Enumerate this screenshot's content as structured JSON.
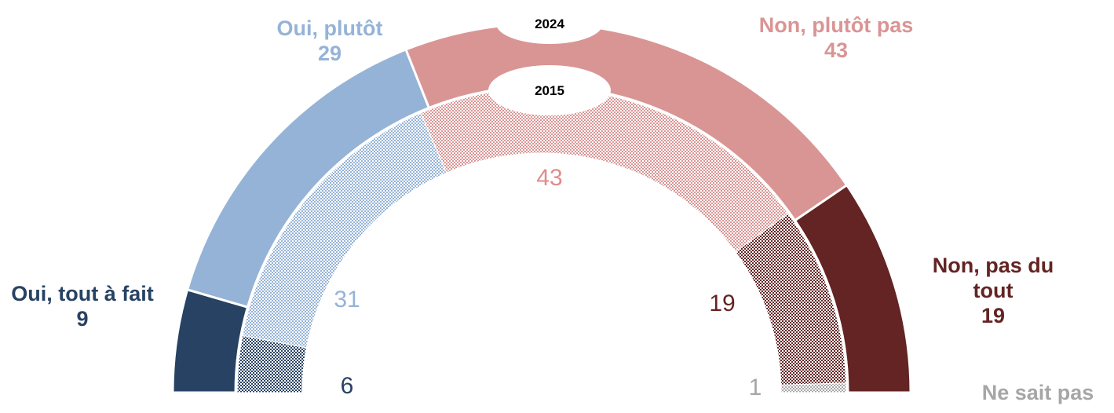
{
  "chart_data": {
    "type": "pie",
    "categories": [
      "Oui, tout à fait",
      "Oui, plutôt",
      "Non, plutôt pas",
      "Non, pas du tout",
      "Ne sait pas"
    ],
    "colors": [
      "#274263",
      "#95b3d7",
      "#d99594",
      "#632423",
      "#a6a6a6"
    ],
    "series": [
      {
        "name": "2024",
        "values": [
          9,
          29,
          43,
          19,
          0
        ]
      },
      {
        "name": "2015",
        "values": [
          6,
          31,
          43,
          19,
          1
        ]
      }
    ]
  }
}
